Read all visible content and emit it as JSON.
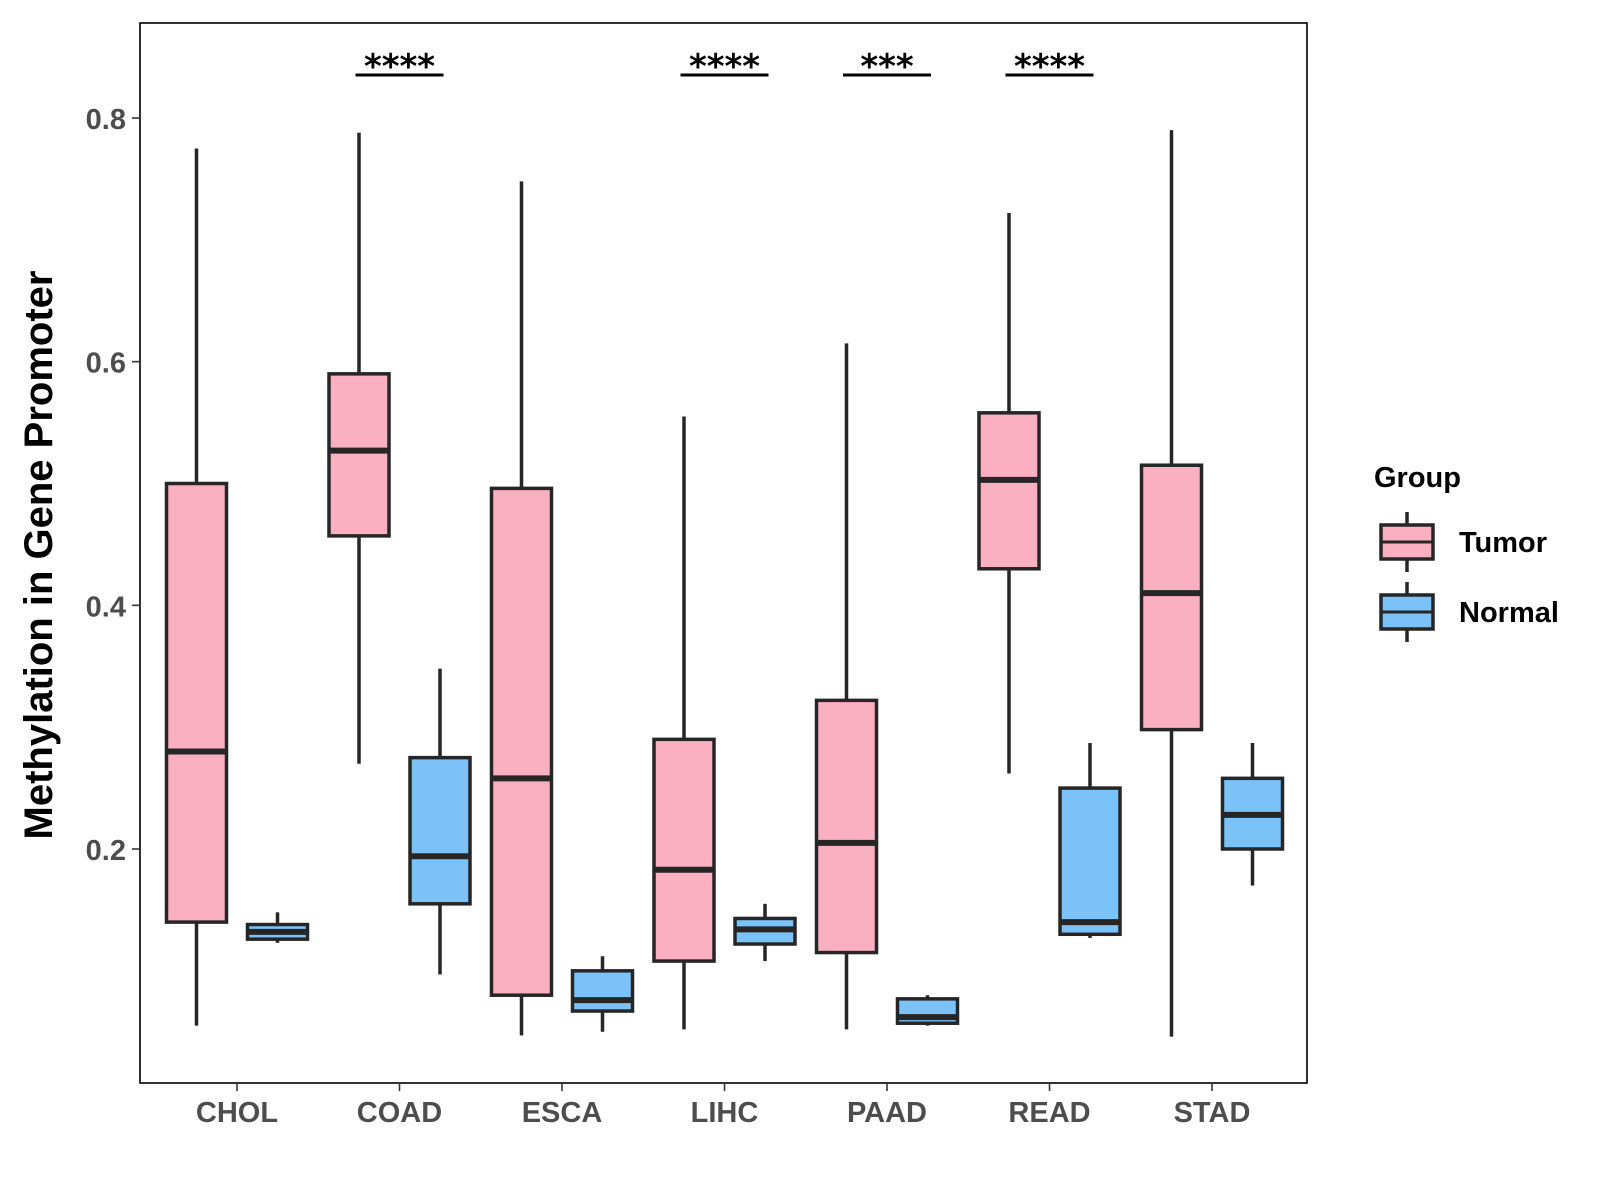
{
  "chart_data": {
    "type": "boxplot",
    "title": "",
    "xlabel": "",
    "ylabel": "Methylation in Gene Promoter",
    "ylim": [
      0.02,
      0.89
    ],
    "yticks": [
      0.2,
      0.4,
      0.6,
      0.8
    ],
    "ytick_labels": [
      "0.2",
      "0.4",
      "0.6",
      "0.8"
    ],
    "grid": false,
    "legend": {
      "title": "Group",
      "placement": "right",
      "entries": [
        {
          "label": "Tumor",
          "color": "#FBB0C2"
        },
        {
          "label": "Normal",
          "color": "#7AC2F8"
        }
      ]
    },
    "categories": [
      "CHOL",
      "COAD",
      "ESCA",
      "LIHC",
      "PAAD",
      "READ",
      "STAD"
    ],
    "series": [
      {
        "name": "Tumor",
        "color": "#FBB0C2",
        "boxes": [
          {
            "min": 0.055,
            "q1": 0.14,
            "median": 0.28,
            "q3": 0.5,
            "max": 0.775
          },
          {
            "min": 0.27,
            "q1": 0.457,
            "median": 0.527,
            "q3": 0.59,
            "max": 0.788
          },
          {
            "min": 0.047,
            "q1": 0.08,
            "median": 0.258,
            "q3": 0.496,
            "max": 0.748
          },
          {
            "min": 0.052,
            "q1": 0.108,
            "median": 0.183,
            "q3": 0.29,
            "max": 0.555
          },
          {
            "min": 0.052,
            "q1": 0.115,
            "median": 0.205,
            "q3": 0.322,
            "max": 0.615
          },
          {
            "min": 0.262,
            "q1": 0.43,
            "median": 0.503,
            "q3": 0.558,
            "max": 0.722
          },
          {
            "min": 0.046,
            "q1": 0.298,
            "median": 0.41,
            "q3": 0.515,
            "max": 0.79
          }
        ]
      },
      {
        "name": "Normal",
        "color": "#7AC2F8",
        "boxes": [
          {
            "min": 0.123,
            "q1": 0.126,
            "median": 0.132,
            "q3": 0.138,
            "max": 0.148
          },
          {
            "min": 0.097,
            "q1": 0.155,
            "median": 0.194,
            "q3": 0.275,
            "max": 0.348
          },
          {
            "min": 0.05,
            "q1": 0.067,
            "median": 0.076,
            "q3": 0.1,
            "max": 0.112
          },
          {
            "min": 0.108,
            "q1": 0.122,
            "median": 0.134,
            "q3": 0.143,
            "max": 0.155
          },
          {
            "min": 0.055,
            "q1": 0.057,
            "median": 0.062,
            "q3": 0.077,
            "max": 0.08
          },
          {
            "min": 0.127,
            "q1": 0.13,
            "median": 0.14,
            "q3": 0.25,
            "max": 0.287
          },
          {
            "min": 0.17,
            "q1": 0.2,
            "median": 0.228,
            "q3": 0.258,
            "max": 0.287
          }
        ]
      }
    ],
    "annotations": [
      {
        "category": "COAD",
        "label": "****"
      },
      {
        "category": "LIHC",
        "label": "****"
      },
      {
        "category": "PAAD",
        "label": "***"
      },
      {
        "category": "READ",
        "label": "****"
      }
    ]
  }
}
